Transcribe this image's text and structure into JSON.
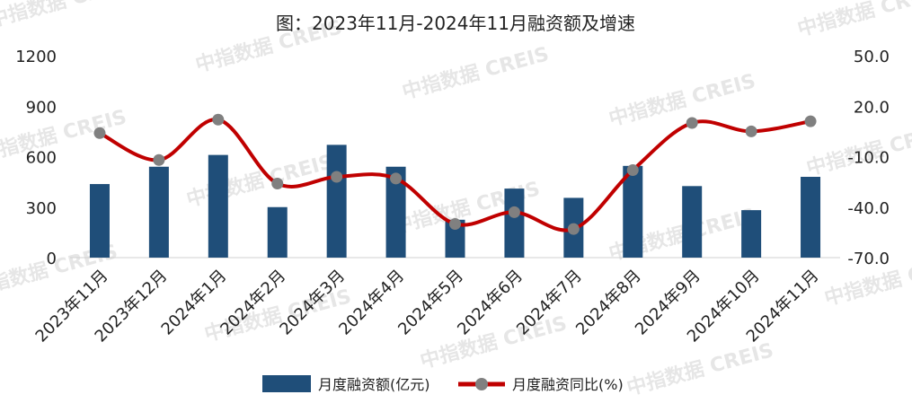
{
  "chart_data": {
    "type": "bar",
    "title": "图：2023年11月-2024年11月融资额及增速",
    "categories": [
      "2023年11月",
      "2023年12月",
      "2024年1月",
      "2024年2月",
      "2024年3月",
      "2024年4月",
      "2024年5月",
      "2024年6月",
      "2024年7月",
      "2024年8月",
      "2024年9月",
      "2024年10月",
      "2024年11月"
    ],
    "series": [
      {
        "name": "月度融资额(亿元)",
        "type": "bar",
        "axis": "left",
        "color": "#1f4e79",
        "values": [
          437,
          540,
          610,
          300,
          670,
          540,
          225,
          410,
          355,
          545,
          425,
          282,
          480
        ]
      },
      {
        "name": "月度融资同比(%)",
        "type": "line",
        "axis": "right",
        "color": "#c00000",
        "marker_color": "#808080",
        "values": [
          4,
          -12,
          12,
          -26,
          -22,
          -23,
          -50,
          -43,
          -53,
          -18,
          10,
          5,
          11
        ]
      }
    ],
    "y_left": {
      "ylim": [
        0,
        1200
      ],
      "ticks": [
        "0",
        "300",
        "600",
        "900",
        "1200"
      ]
    },
    "y_right": {
      "ylim": [
        -70,
        50
      ],
      "ticks": [
        "-70.0",
        "-40.0",
        "-10.0",
        "20.0",
        "50.0"
      ]
    },
    "legend": "bottom",
    "grid": false
  },
  "watermark": {
    "text": "中指数据 CREIS"
  }
}
